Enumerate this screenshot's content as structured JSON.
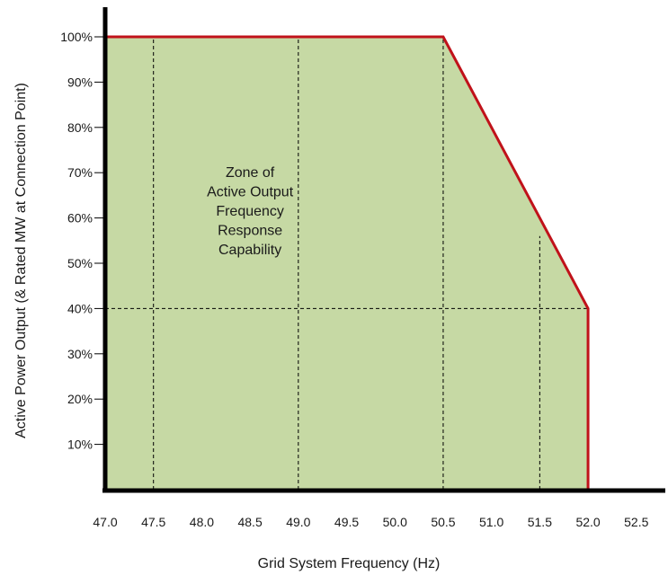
{
  "chart_data": {
    "type": "area",
    "xlabel": "Grid System Frequency (Hz)",
    "ylabel": "Active Power Output (& Rated MW at Connection Point)",
    "x_ticks": [
      "47.0",
      "47.5",
      "48.0",
      "48.5",
      "49.0",
      "49.5",
      "50.0",
      "50.5",
      "51.0",
      "51.5",
      "52.0",
      "52.5"
    ],
    "y_ticks": [
      "10%",
      "20%",
      "30%",
      "40%",
      "50%",
      "60%",
      "70%",
      "80%",
      "90%",
      "100%"
    ],
    "xlim": [
      47.0,
      52.8
    ],
    "ylim": [
      0,
      100
    ],
    "annotation": {
      "lines": [
        "Zone of",
        "Active Output",
        "Frequency",
        "Response",
        "Capability"
      ],
      "x": 48.5,
      "y": 69
    },
    "series": [
      {
        "points": [
          {
            "x": 47.0,
            "y": 100
          },
          {
            "x": 50.5,
            "y": 100
          },
          {
            "x": 52.0,
            "y": 40
          },
          {
            "x": 52.0,
            "y": 0
          }
        ]
      }
    ],
    "reference_lines": {
      "vertical": [
        {
          "x": 47.5,
          "y_max": 100
        },
        {
          "x": 49.0,
          "y_max": 100
        },
        {
          "x": 50.5,
          "y_max": 100
        },
        {
          "x": 51.5,
          "y_max": 56
        }
      ],
      "horizontal": [
        {
          "y": 40,
          "x_min": 47.0,
          "x_max": 52.0
        }
      ]
    },
    "colors": {
      "fill": "#c6d9a4",
      "line": "#c0121a",
      "axis": "#000000",
      "grid": "#000000"
    },
    "grid": false,
    "legend": "none"
  }
}
